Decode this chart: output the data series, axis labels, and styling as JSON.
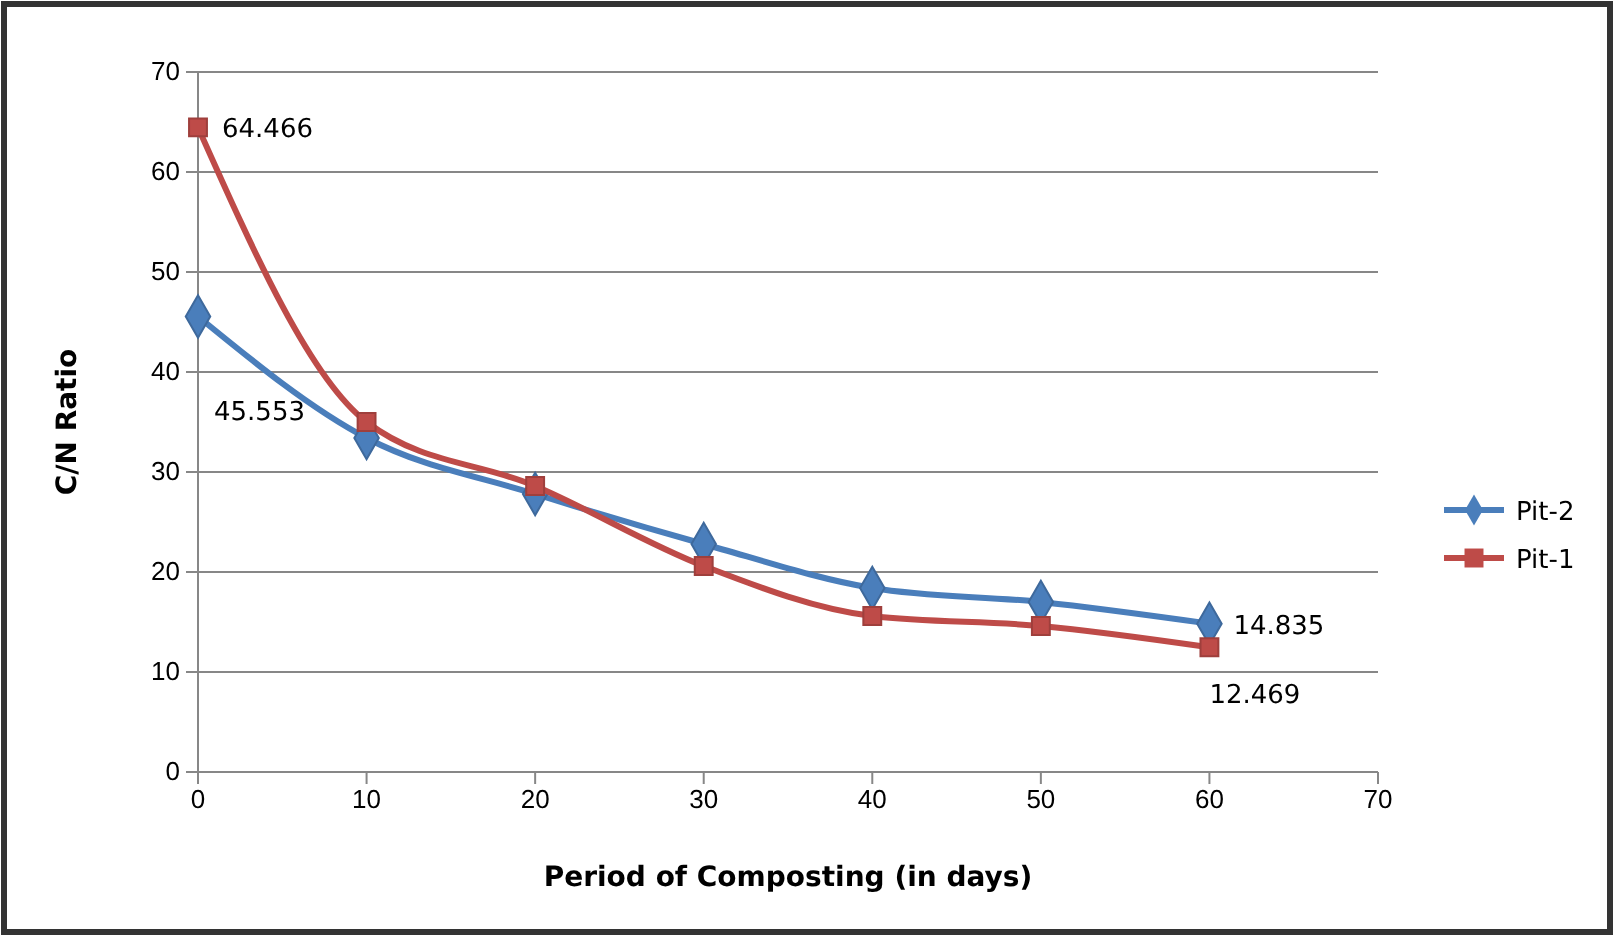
{
  "chart_data": {
    "type": "line",
    "xlabel": "Period of Composting (in days)",
    "ylabel": "C/N Ratio",
    "x": [
      0,
      10,
      20,
      30,
      40,
      50,
      60
    ],
    "series": [
      {
        "name": "Pit-2",
        "color": "#4a7ebb",
        "marker": "diamond",
        "values": [
          45.553,
          33.4,
          27.8,
          22.8,
          18.4,
          17.0,
          14.835
        ],
        "value_labels": [
          "45.553",
          null,
          null,
          null,
          null,
          null,
          "14.835"
        ]
      },
      {
        "name": "Pit-1",
        "color": "#be4b48",
        "marker": "square",
        "values": [
          64.466,
          35.0,
          28.6,
          20.6,
          15.6,
          14.6,
          12.469
        ],
        "value_labels": [
          "64.466",
          null,
          null,
          null,
          null,
          null,
          "12.469"
        ]
      }
    ],
    "xlim": [
      0,
      70
    ],
    "xticks": [
      0,
      10,
      20,
      30,
      40,
      50,
      60,
      70
    ],
    "ylim": [
      0,
      70
    ],
    "yticks": [
      0,
      10,
      20,
      30,
      40,
      50,
      60,
      70
    ],
    "grid": "y",
    "legend": "right",
    "line_style": "solid"
  }
}
